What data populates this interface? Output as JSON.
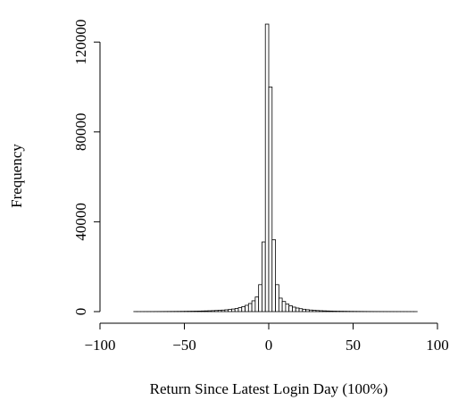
{
  "chart_data": {
    "type": "histogram",
    "x_label": "Return Since Latest Login Day (100%)",
    "y_label": "Frequency",
    "bins": [
      -80,
      -78,
      -76,
      -74,
      -72,
      -70,
      -68,
      -66,
      -64,
      -62,
      -60,
      -58,
      -56,
      -54,
      -52,
      -50,
      -48,
      -46,
      -44,
      -42,
      -40,
      -38,
      -36,
      -34,
      -32,
      -30,
      -28,
      -26,
      -24,
      -22,
      -20,
      -18,
      -16,
      -14,
      -12,
      -10,
      -8,
      -6,
      -4,
      -2,
      0,
      2,
      4,
      6,
      8,
      10,
      12,
      14,
      16,
      18,
      20,
      22,
      24,
      26,
      28,
      30,
      32,
      34,
      36,
      38,
      40,
      42,
      44,
      46,
      48,
      50,
      52,
      54,
      56,
      58,
      60,
      62,
      64,
      66,
      68,
      70,
      72,
      74,
      76,
      78,
      80,
      82,
      84,
      86,
      88
    ],
    "values": [
      20,
      15,
      20,
      25,
      30,
      30,
      40,
      45,
      50,
      60,
      70,
      80,
      90,
      100,
      120,
      140,
      160,
      180,
      210,
      240,
      280,
      320,
      370,
      430,
      500,
      580,
      680,
      800,
      950,
      1150,
      1400,
      1750,
      2200,
      2800,
      3600,
      4800,
      6500,
      12000,
      31000,
      128000,
      100000,
      32000,
      12000,
      6000,
      4500,
      3400,
      2600,
      2000,
      1600,
      1300,
      1050,
      850,
      700,
      580,
      480,
      400,
      340,
      290,
      250,
      210,
      180,
      160,
      140,
      120,
      100,
      90,
      80,
      70,
      60,
      50,
      45,
      40,
      35,
      30,
      28,
      25,
      22,
      20,
      18,
      15,
      12,
      10,
      8,
      5
    ],
    "color": "#ffffff",
    "edgecolor": "#000000",
    "xlim": [
      -100,
      100
    ],
    "xticks": [
      {
        "value": -100,
        "label": "−100"
      },
      {
        "value": -50,
        "label": "−50"
      },
      0,
      50,
      100
    ],
    "ylim": [
      0,
      130000
    ],
    "yticks": [
      0,
      40000,
      80000,
      120000
    ]
  }
}
